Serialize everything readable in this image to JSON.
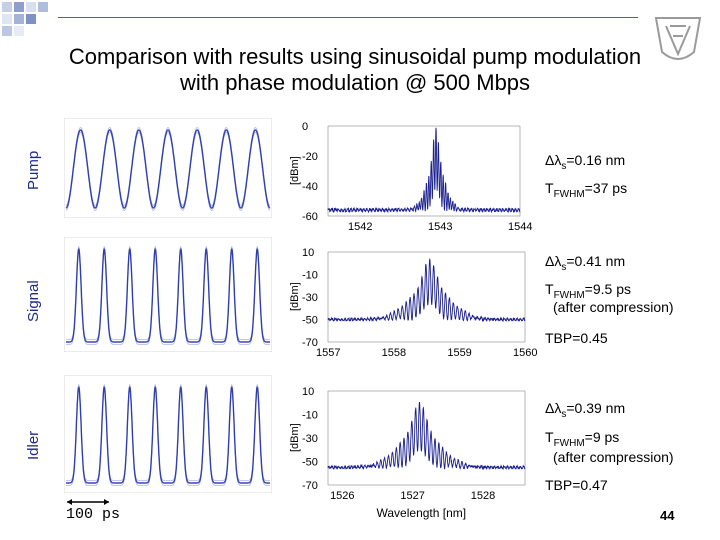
{
  "slide": {
    "title_line1": "Comparison with results using sinusoidal pump modulation",
    "title_line2": "with phase modulation @ 500 Mbps",
    "page_number": "44",
    "scale_bar_label": "100 ps",
    "row_labels": [
      "Pump",
      "Signal",
      "Idler"
    ],
    "logo": "university-emblem-icon"
  },
  "annotations": [
    {
      "delta_prefix": "Δλ",
      "delta_sub": "s",
      "delta_value": "=0.16 nm",
      "t_prefix": "T",
      "t_sub": "FWHM",
      "t_value": "=37 ps",
      "extra": "",
      "tbp": ""
    },
    {
      "delta_prefix": "Δλ",
      "delta_sub": "s",
      "delta_value": "=0.41 nm",
      "t_prefix": "T",
      "t_sub": "FWHM",
      "t_value": "=9.5 ps",
      "extra": "(after compression)",
      "tbp": "TBP=0.45"
    },
    {
      "delta_prefix": "Δλ",
      "delta_sub": "s",
      "delta_value": "=0.39 nm",
      "t_prefix": "T",
      "t_sub": "FWHM",
      "t_value": "=9 ps",
      "extra": "(after compression)",
      "tbp": "TBP=0.47"
    }
  ],
  "chart_data": [
    {
      "type": "line",
      "name": "pump-spectrum",
      "ylabel": "[dBm]",
      "xlabel": "",
      "xlim": [
        1541.6,
        1544.0
      ],
      "ylim": [
        -60,
        0
      ],
      "xticks": [
        1542,
        1543,
        1544
      ],
      "yticks": [
        0,
        -20,
        -40,
        -60
      ],
      "center": 1542.95,
      "peak": -2,
      "floor": -56,
      "envelope_width": 0.16,
      "base_width": 0.32,
      "comb_period": 0.03
    },
    {
      "type": "line",
      "name": "signal-spectrum",
      "ylabel": "[dBm]",
      "xlabel": "",
      "xlim": [
        1557,
        1560
      ],
      "ylim": [
        -70,
        10
      ],
      "xticks": [
        1557,
        1558,
        1559,
        1560
      ],
      "yticks": [
        10,
        -10,
        -30,
        -50,
        -70
      ],
      "center": 1558.55,
      "peak": 3,
      "floor": -50,
      "envelope_width": 0.41,
      "base_width": 0.9,
      "comb_period": 0.06
    },
    {
      "type": "line",
      "name": "idler-spectrum",
      "ylabel": "[dBm]",
      "xlabel": "Wavelength [nm]",
      "xlim": [
        1525.8,
        1528.6
      ],
      "ylim": [
        -70,
        10
      ],
      "xticks": [
        1526,
        1527,
        1528
      ],
      "yticks": [
        10,
        -10,
        -30,
        -50,
        -70
      ],
      "center": 1527.1,
      "peak": 0,
      "floor": -55,
      "envelope_width": 0.39,
      "base_width": 0.85,
      "comb_period": 0.055
    },
    {
      "type": "line",
      "name": "pump-oscilloscope-trace",
      "pulses_shown": 7,
      "shape": "sinusoidal",
      "color": "#2233aa"
    },
    {
      "type": "line",
      "name": "signal-oscilloscope-trace",
      "pulses_shown": 8,
      "shape": "pulsed",
      "color": "#2233aa"
    },
    {
      "type": "line",
      "name": "idler-oscilloscope-trace",
      "pulses_shown": 8,
      "shape": "pulsed",
      "color": "#2233aa"
    }
  ],
  "colors": {
    "trace": "#1a1f8f",
    "osc_trace": "#3344bb",
    "accent_squares": "#a9b7d8",
    "deco_line": "#4a4a9a"
  }
}
